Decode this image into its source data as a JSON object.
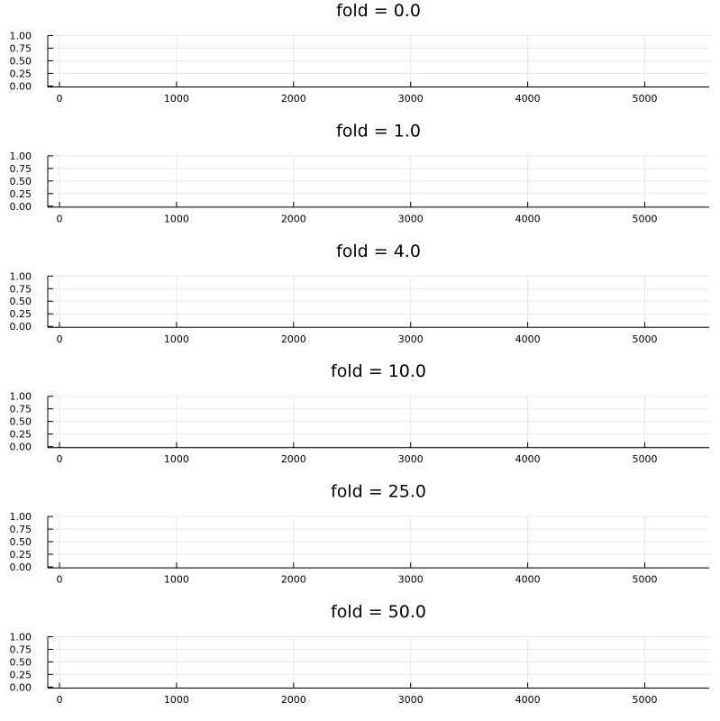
{
  "chart_data": [
    {
      "type": "line",
      "title": "fold = 0.0",
      "xlabel": "",
      "ylabel": "",
      "xlim": [
        -100,
        5550
      ],
      "ylim": [
        -0.02,
        1.0
      ],
      "xticks": [
        0,
        1000,
        2000,
        3000,
        4000,
        5000
      ],
      "xtick_labels": [
        "0",
        "1000",
        "2000",
        "3000",
        "4000",
        "5000"
      ],
      "yticks": [
        0.0,
        0.25,
        0.5,
        0.75,
        1.0
      ],
      "ytick_labels": [
        "0.00",
        "0.25",
        "0.50",
        "0.75",
        "1.00"
      ],
      "grid": true,
      "legend": "none",
      "series": [
        {
          "x": [],
          "y": [],
          "color": "#009af9"
        }
      ]
    },
    {
      "type": "line",
      "title": "fold = 1.0",
      "xlabel": "",
      "ylabel": "",
      "xlim": [
        -100,
        5550
      ],
      "ylim": [
        -0.02,
        1.0
      ],
      "xticks": [
        0,
        1000,
        2000,
        3000,
        4000,
        5000
      ],
      "xtick_labels": [
        "0",
        "1000",
        "2000",
        "3000",
        "4000",
        "5000"
      ],
      "yticks": [
        0.0,
        0.25,
        0.5,
        0.75,
        1.0
      ],
      "ytick_labels": [
        "0.00",
        "0.25",
        "0.50",
        "0.75",
        "1.00"
      ],
      "grid": true,
      "legend": "none",
      "series": [
        {
          "x": [],
          "y": [],
          "color": "#009af9"
        }
      ]
    },
    {
      "type": "line",
      "title": "fold = 4.0",
      "xlabel": "",
      "ylabel": "",
      "xlim": [
        -100,
        5550
      ],
      "ylim": [
        -0.02,
        1.0
      ],
      "xticks": [
        0,
        1000,
        2000,
        3000,
        4000,
        5000
      ],
      "xtick_labels": [
        "0",
        "1000",
        "2000",
        "3000",
        "4000",
        "5000"
      ],
      "yticks": [
        0.0,
        0.25,
        0.5,
        0.75,
        1.0
      ],
      "ytick_labels": [
        "0.00",
        "0.25",
        "0.50",
        "0.75",
        "1.00"
      ],
      "grid": true,
      "legend": "none",
      "series": [
        {
          "x": [],
          "y": [],
          "color": "#009af9"
        }
      ]
    },
    {
      "type": "line",
      "title": "fold = 10.0",
      "xlabel": "",
      "ylabel": "",
      "xlim": [
        -100,
        5550
      ],
      "ylim": [
        -0.02,
        1.0
      ],
      "xticks": [
        0,
        1000,
        2000,
        3000,
        4000,
        5000
      ],
      "xtick_labels": [
        "0",
        "1000",
        "2000",
        "3000",
        "4000",
        "5000"
      ],
      "yticks": [
        0.0,
        0.25,
        0.5,
        0.75,
        1.0
      ],
      "ytick_labels": [
        "0.00",
        "0.25",
        "0.50",
        "0.75",
        "1.00"
      ],
      "grid": true,
      "legend": "none",
      "series": [
        {
          "x": [],
          "y": [],
          "color": "#009af9"
        }
      ]
    },
    {
      "type": "line",
      "title": "fold = 25.0",
      "xlabel": "",
      "ylabel": "",
      "xlim": [
        -100,
        5550
      ],
      "ylim": [
        -0.02,
        1.0
      ],
      "xticks": [
        0,
        1000,
        2000,
        3000,
        4000,
        5000
      ],
      "xtick_labels": [
        "0",
        "1000",
        "2000",
        "3000",
        "4000",
        "5000"
      ],
      "yticks": [
        0.0,
        0.25,
        0.5,
        0.75,
        1.0
      ],
      "ytick_labels": [
        "0.00",
        "0.25",
        "0.50",
        "0.75",
        "1.00"
      ],
      "grid": true,
      "legend": "none",
      "series": [
        {
          "x": [],
          "y": [],
          "color": "#009af9"
        }
      ]
    },
    {
      "type": "line",
      "title": "fold = 50.0",
      "xlabel": "",
      "ylabel": "",
      "xlim": [
        -100,
        5550
      ],
      "ylim": [
        -0.02,
        1.0
      ],
      "xticks": [
        0,
        1000,
        2000,
        3000,
        4000,
        5000
      ],
      "xtick_labels": [
        "0",
        "1000",
        "2000",
        "3000",
        "4000",
        "5000"
      ],
      "yticks": [
        0.0,
        0.25,
        0.5,
        0.75,
        1.0
      ],
      "ytick_labels": [
        "0.00",
        "0.25",
        "0.50",
        "0.75",
        "1.00"
      ],
      "grid": true,
      "legend": "none",
      "series": [
        {
          "x": [],
          "y": [],
          "color": "#009af9"
        }
      ]
    }
  ]
}
